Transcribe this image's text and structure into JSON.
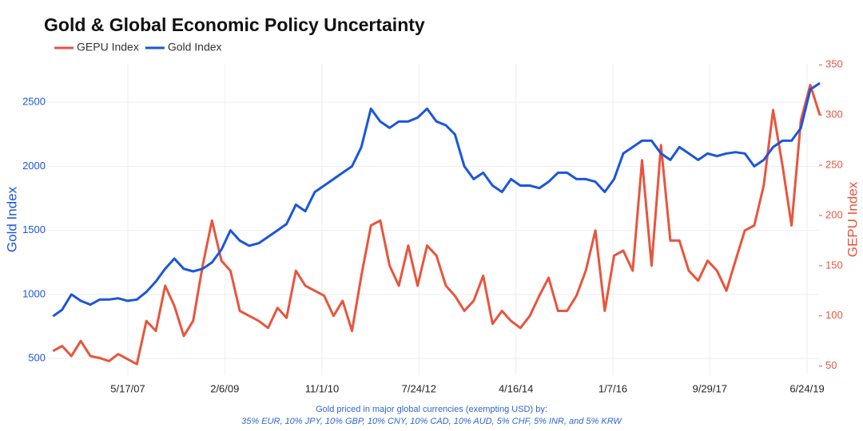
{
  "chart_data": {
    "type": "line",
    "title": "Gold & Global Economic Policy Uncertainty",
    "ylabel": "Gold Index",
    "y2label": "GEPU Index",
    "notes": [
      "Gold priced in major global currencies (exempting USD) by:",
      "35% EUR, 10% JPY, 10% GBP, 10% CNY, 10% CAD, 10% AUD, 5% CHF, 5% INR, and 5% KRW"
    ],
    "x": [
      "2006-01-15",
      "2006-03-15",
      "2006-05-15",
      "2006-07-15",
      "2006-09-15",
      "2006-11-15",
      "2007-01-15",
      "2007-03-15",
      "2007-05-15",
      "2007-07-15",
      "2007-09-15",
      "2007-11-15",
      "2008-01-15",
      "2008-03-15",
      "2008-05-15",
      "2008-07-15",
      "2008-09-15",
      "2008-11-15",
      "2009-01-15",
      "2009-03-15",
      "2009-05-15",
      "2009-07-15",
      "2009-09-15",
      "2009-11-15",
      "2010-01-15",
      "2010-03-15",
      "2010-05-15",
      "2010-07-15",
      "2010-09-15",
      "2010-11-15",
      "2011-01-15",
      "2011-03-15",
      "2011-05-15",
      "2011-07-15",
      "2011-09-15",
      "2011-11-15",
      "2012-01-15",
      "2012-03-15",
      "2012-05-15",
      "2012-07-15",
      "2012-09-15",
      "2012-11-15",
      "2013-01-15",
      "2013-03-15",
      "2013-05-15",
      "2013-07-15",
      "2013-09-15",
      "2013-11-15",
      "2014-01-15",
      "2014-03-15",
      "2014-05-15",
      "2014-07-15",
      "2014-09-15",
      "2014-11-15",
      "2015-01-15",
      "2015-03-15",
      "2015-05-15",
      "2015-07-15",
      "2015-09-15",
      "2015-11-15",
      "2016-01-15",
      "2016-03-15",
      "2016-05-15",
      "2016-07-15",
      "2016-09-15",
      "2016-11-15",
      "2017-01-15",
      "2017-03-15",
      "2017-05-15",
      "2017-07-15",
      "2017-09-15",
      "2017-11-15",
      "2018-01-15",
      "2018-03-15",
      "2018-05-15",
      "2018-07-15",
      "2018-09-15",
      "2018-11-15",
      "2019-01-15",
      "2019-03-15",
      "2019-05-15",
      "2019-07-15",
      "2019-09-15"
    ],
    "series": [
      {
        "name": "GEPU Index",
        "color": "#e8553e",
        "axis": "y2",
        "values": [
          65,
          70,
          60,
          75,
          60,
          58,
          55,
          62,
          57,
          52,
          95,
          85,
          130,
          110,
          80,
          95,
          150,
          195,
          155,
          145,
          105,
          100,
          95,
          88,
          108,
          98,
          145,
          130,
          125,
          120,
          100,
          115,
          85,
          140,
          190,
          195,
          150,
          130,
          170,
          130,
          170,
          160,
          130,
          120,
          105,
          115,
          140,
          92,
          105,
          95,
          88,
          100,
          120,
          138,
          105,
          105,
          120,
          145,
          185,
          105,
          160,
          165,
          145,
          255,
          150,
          270,
          175,
          175,
          145,
          135,
          155,
          145,
          125,
          155,
          185,
          190,
          230,
          305,
          250,
          190,
          295,
          330,
          300
        ]
      },
      {
        "name": "Gold Index",
        "color": "#1a56db",
        "values": [
          830,
          880,
          1000,
          950,
          920,
          960,
          960,
          970,
          950,
          960,
          1020,
          1100,
          1200,
          1280,
          1200,
          1180,
          1200,
          1250,
          1350,
          1500,
          1420,
          1380,
          1400,
          1450,
          1500,
          1550,
          1700,
          1650,
          1800,
          1850,
          1900,
          1950,
          2000,
          2150,
          2450,
          2350,
          2300,
          2350,
          2350,
          2380,
          2450,
          2350,
          2320,
          2250,
          2000,
          1900,
          1950,
          1850,
          1800,
          1900,
          1850,
          1850,
          1830,
          1880,
          1950,
          1950,
          1900,
          1900,
          1880,
          1800,
          1900,
          2100,
          2150,
          2200,
          2200,
          2100,
          2050,
          2150,
          2100,
          2050,
          2100,
          2080,
          2100,
          2110,
          2100,
          2000,
          2050,
          2150,
          2200,
          2200,
          2300,
          2600,
          2650
        ]
      }
    ],
    "xlim": [
      "2005-12-13",
      "2019-09-10"
    ],
    "xticks": [
      {
        "value": "2007-05-17",
        "label": "5/17/07"
      },
      {
        "value": "2009-02-06",
        "label": "2/6/09"
      },
      {
        "value": "2010-11-01",
        "label": "11/1/10"
      },
      {
        "value": "2012-07-24",
        "label": "7/24/12"
      },
      {
        "value": "2014-04-16",
        "label": "4/16/14"
      },
      {
        "value": "2016-01-07",
        "label": "1/7/16"
      },
      {
        "value": "2017-09-29",
        "label": "9/29/17"
      },
      {
        "value": "2019-06-24",
        "label": "6/24/19"
      }
    ],
    "ylim": [
      370,
      2800
    ],
    "yticks": [
      500,
      1000,
      1500,
      2000,
      2500
    ],
    "y2lim": [
      41,
      351
    ],
    "y2ticks": [
      50,
      100,
      150,
      200,
      250,
      300,
      350
    ],
    "grid": true
  }
}
